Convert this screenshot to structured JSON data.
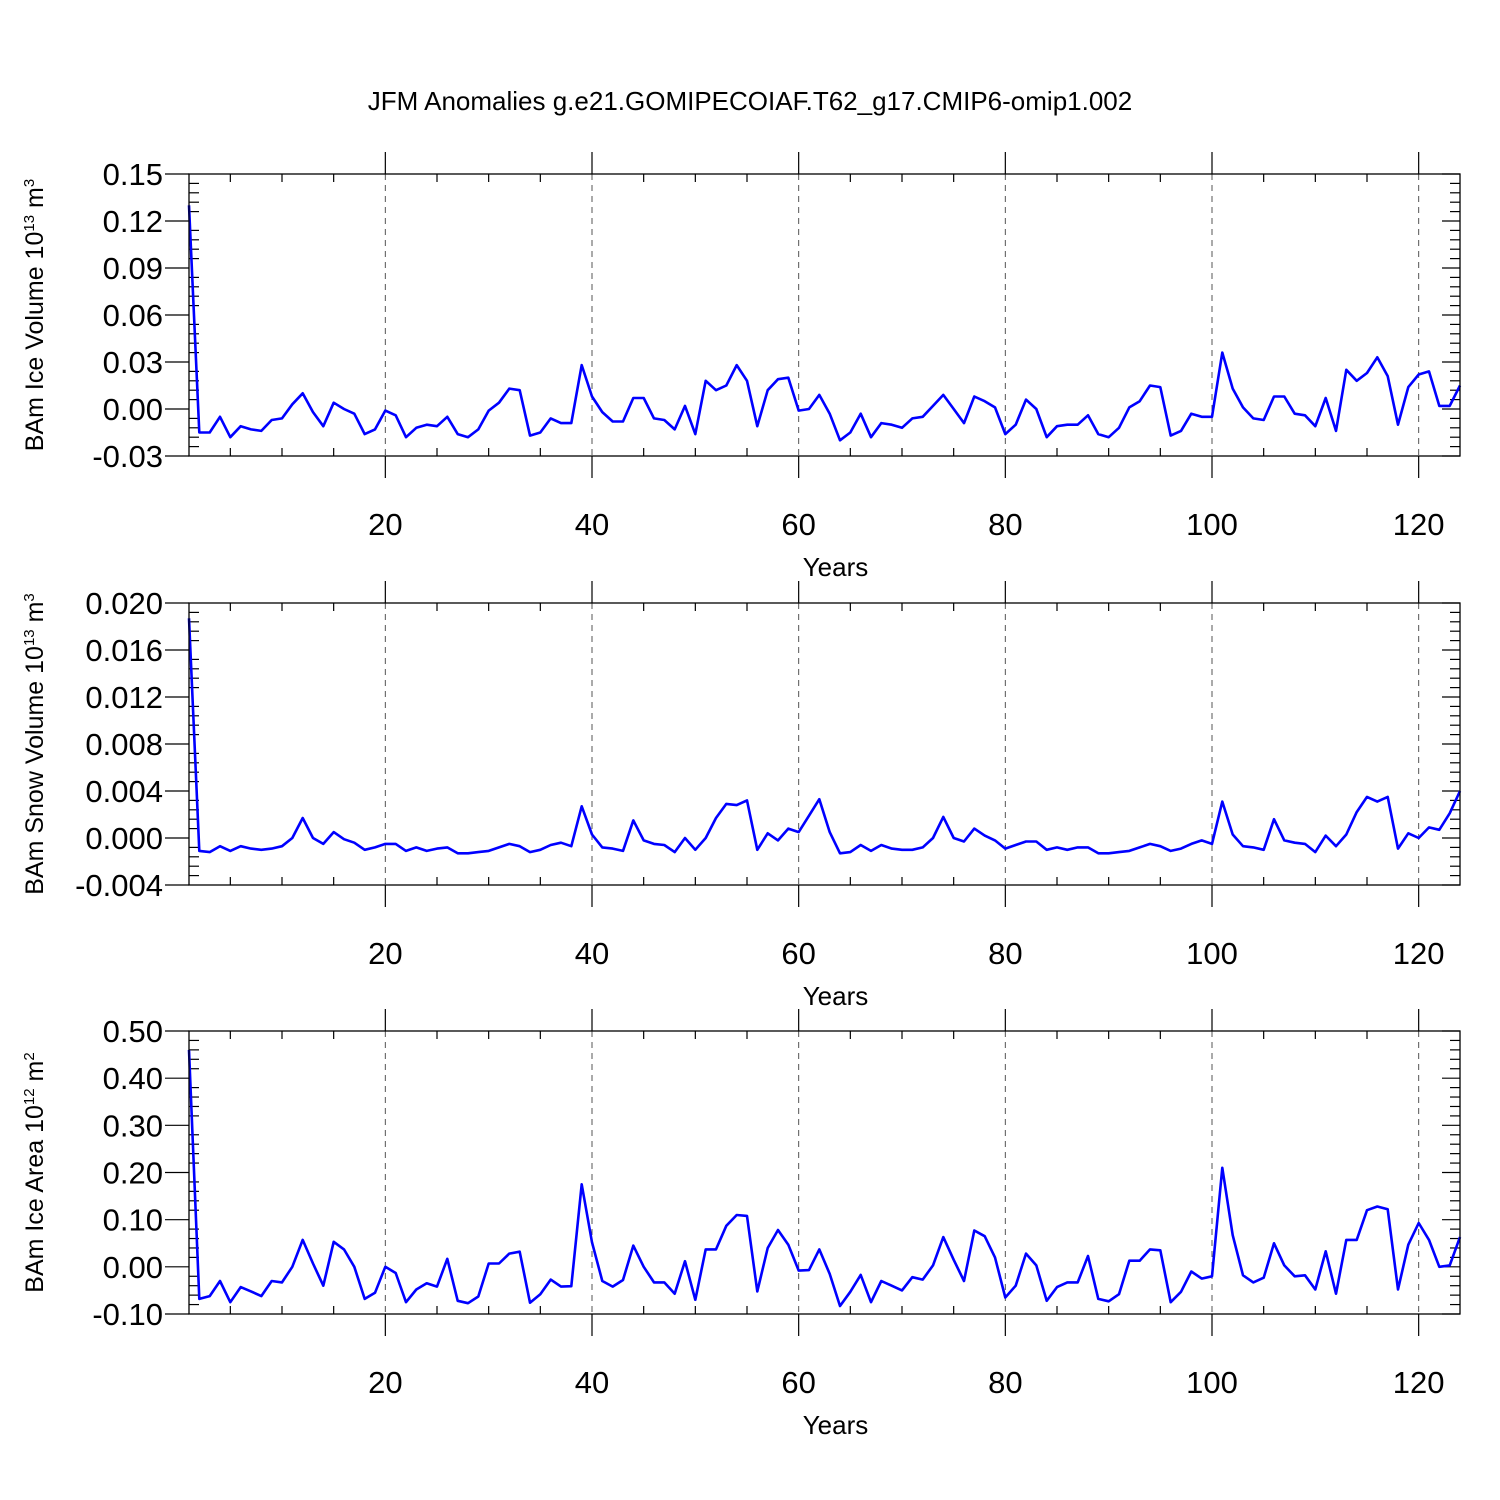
{
  "title": "JFM Anomalies g.e21.GOMIPECOIAF.T62_g17.CMIP6-omip1.002",
  "series_color": "#0000ff",
  "chart_data": [
    {
      "type": "line",
      "ylabel": "BAm Ice Volume 10",
      "ylabel_exp": "13",
      "ylabel_unit": " m",
      "ylabel_unit_exp": "3",
      "xlabel": "Years",
      "xlim": [
        1,
        124
      ],
      "ylim": [
        -0.03,
        0.15
      ],
      "xticks": [
        20,
        40,
        60,
        80,
        100,
        120
      ],
      "xtick_labels": [
        "20",
        "40",
        "60",
        "80",
        "100",
        "120"
      ],
      "yticks": [
        -0.03,
        0.0,
        0.03,
        0.06,
        0.09,
        0.12,
        0.15
      ],
      "ytick_labels": [
        "-0.03",
        "0.00",
        "0.03",
        "0.06",
        "0.09",
        "0.12",
        "0.15"
      ],
      "grid": "vertical-dashed",
      "x_start": 1,
      "values": [
        0.13,
        -0.015,
        -0.015,
        -0.005,
        -0.018,
        -0.011,
        -0.013,
        -0.014,
        -0.007,
        -0.006,
        0.003,
        0.01,
        -0.002,
        -0.011,
        0.004,
        0.0,
        -0.003,
        -0.016,
        -0.013,
        -0.001,
        -0.004,
        -0.018,
        -0.012,
        -0.01,
        -0.011,
        -0.005,
        -0.016,
        -0.018,
        -0.013,
        -0.001,
        0.004,
        0.013,
        0.012,
        -0.017,
        -0.015,
        -0.006,
        -0.009,
        -0.009,
        0.028,
        0.008,
        -0.002,
        -0.008,
        -0.008,
        0.007,
        0.007,
        -0.006,
        -0.007,
        -0.013,
        0.002,
        -0.016,
        0.018,
        0.012,
        0.015,
        0.028,
        0.018,
        -0.011,
        0.012,
        0.019,
        0.02,
        -0.001,
        0.0,
        0.009,
        -0.003,
        -0.02,
        -0.015,
        -0.003,
        -0.018,
        -0.009,
        -0.01,
        -0.012,
        -0.006,
        -0.005,
        0.002,
        0.009,
        0.0,
        -0.009,
        0.008,
        0.005,
        0.001,
        -0.016,
        -0.01,
        0.006,
        0.0,
        -0.018,
        -0.011,
        -0.01,
        -0.01,
        -0.004,
        -0.016,
        -0.018,
        -0.012,
        0.001,
        0.005,
        0.015,
        0.014,
        -0.017,
        -0.014,
        -0.003,
        -0.005,
        -0.005,
        0.036,
        0.013,
        0.001,
        -0.006,
        -0.007,
        0.008,
        0.008,
        -0.003,
        -0.004,
        -0.011,
        0.007,
        -0.014,
        0.025,
        0.018,
        0.023,
        0.033,
        0.021,
        -0.01,
        0.014,
        0.022,
        0.024,
        0.002,
        0.002,
        0.015
      ]
    },
    {
      "type": "line",
      "ylabel": "BAm Snow Volume 10",
      "ylabel_exp": "13",
      "ylabel_unit": " m",
      "ylabel_unit_exp": "3",
      "xlabel": "Years",
      "xlim": [
        1,
        124
      ],
      "ylim": [
        -0.004,
        0.02
      ],
      "xticks": [
        20,
        40,
        60,
        80,
        100,
        120
      ],
      "xtick_labels": [
        "20",
        "40",
        "60",
        "80",
        "100",
        "120"
      ],
      "yticks": [
        -0.004,
        0.0,
        0.004,
        0.008,
        0.012,
        0.016,
        0.02
      ],
      "ytick_labels": [
        "-0.004",
        "0.000",
        "0.004",
        "0.008",
        "0.012",
        "0.016",
        "0.020"
      ],
      "grid": "vertical-dashed",
      "x_start": 1,
      "values": [
        0.0187,
        -0.0011,
        -0.0012,
        -0.0007,
        -0.0011,
        -0.0007,
        -0.0009,
        -0.001,
        -0.0009,
        -0.0007,
        0.0,
        0.0017,
        0.0,
        -0.0005,
        0.0005,
        -0.0001,
        -0.0004,
        -0.001,
        -0.0008,
        -0.0005,
        -0.0005,
        -0.0011,
        -0.0008,
        -0.0011,
        -0.0009,
        -0.0008,
        -0.0013,
        -0.0013,
        -0.0012,
        -0.0011,
        -0.0008,
        -0.0005,
        -0.0007,
        -0.0012,
        -0.001,
        -0.0006,
        -0.0004,
        -0.0007,
        0.0027,
        0.0003,
        -0.0008,
        -0.0009,
        -0.0011,
        0.0015,
        -0.0002,
        -0.0005,
        -0.0006,
        -0.0012,
        0.0,
        -0.001,
        0.0,
        0.0017,
        0.0029,
        0.0028,
        0.0032,
        -0.001,
        0.0004,
        -0.0002,
        0.0008,
        0.0005,
        0.0019,
        0.0033,
        0.0005,
        -0.0013,
        -0.0012,
        -0.0006,
        -0.0011,
        -0.0006,
        -0.0009,
        -0.001,
        -0.001,
        -0.0008,
        0.0,
        0.0018,
        0.0,
        -0.0003,
        0.0008,
        0.0002,
        -0.0002,
        -0.0009,
        -0.0006,
        -0.0003,
        -0.0003,
        -0.001,
        -0.0008,
        -0.001,
        -0.0008,
        -0.0008,
        -0.0013,
        -0.0013,
        -0.0012,
        -0.0011,
        -0.0008,
        -0.0005,
        -0.0007,
        -0.0011,
        -0.0009,
        -0.0005,
        -0.0002,
        -0.0005,
        0.0031,
        0.0003,
        -0.0007,
        -0.0008,
        -0.001,
        0.0016,
        -0.0002,
        -0.0004,
        -0.0005,
        -0.0012,
        0.0002,
        -0.0007,
        0.0003,
        0.0022,
        0.0035,
        0.0031,
        0.0035,
        -0.0009,
        0.0004,
        0.0,
        0.0009,
        0.0007,
        0.0021,
        0.004
      ]
    },
    {
      "type": "line",
      "ylabel": "BAm Ice Area 10",
      "ylabel_exp": "12",
      "ylabel_unit": " m",
      "ylabel_unit_exp": "2",
      "xlabel": "Years",
      "xlim": [
        1,
        124
      ],
      "ylim": [
        -0.1,
        0.5
      ],
      "xticks": [
        20,
        40,
        60,
        80,
        100,
        120
      ],
      "xtick_labels": [
        "20",
        "40",
        "60",
        "80",
        "100",
        "120"
      ],
      "yticks": [
        -0.1,
        0.0,
        0.1,
        0.2,
        0.3,
        0.4,
        0.5
      ],
      "ytick_labels": [
        "-0.10",
        "0.00",
        "0.10",
        "0.20",
        "0.30",
        "0.40",
        "0.50"
      ],
      "grid": "vertical-dashed",
      "x_start": 1,
      "values": [
        0.46,
        -0.068,
        -0.062,
        -0.03,
        -0.075,
        -0.043,
        -0.052,
        -0.062,
        -0.03,
        -0.033,
        0.0,
        0.057,
        0.007,
        -0.04,
        0.053,
        0.037,
        0.0,
        -0.068,
        -0.055,
        0.0,
        -0.013,
        -0.075,
        -0.048,
        -0.035,
        -0.042,
        0.017,
        -0.072,
        -0.077,
        -0.063,
        0.007,
        0.007,
        0.028,
        0.032,
        -0.076,
        -0.058,
        -0.027,
        -0.042,
        -0.041,
        0.175,
        0.052,
        -0.03,
        -0.042,
        -0.028,
        0.045,
        0.0,
        -0.033,
        -0.033,
        -0.057,
        0.012,
        -0.07,
        0.037,
        0.037,
        0.087,
        0.11,
        0.108,
        -0.052,
        0.04,
        0.078,
        0.047,
        -0.008,
        -0.007,
        0.037,
        -0.015,
        -0.083,
        -0.053,
        -0.017,
        -0.075,
        -0.03,
        -0.04,
        -0.05,
        -0.022,
        -0.027,
        0.003,
        0.063,
        0.015,
        -0.03,
        0.077,
        0.065,
        0.02,
        -0.065,
        -0.04,
        0.028,
        0.003,
        -0.072,
        -0.043,
        -0.033,
        -0.033,
        0.023,
        -0.068,
        -0.073,
        -0.058,
        0.013,
        0.013,
        0.037,
        0.035,
        -0.075,
        -0.053,
        -0.01,
        -0.025,
        -0.02,
        0.21,
        0.067,
        -0.018,
        -0.033,
        -0.023,
        0.05,
        0.003,
        -0.02,
        -0.018,
        -0.048,
        0.033,
        -0.057,
        0.057,
        0.057,
        0.12,
        0.128,
        0.122,
        -0.048,
        0.047,
        0.093,
        0.057,
        0.0,
        0.003,
        0.063
      ]
    }
  ]
}
